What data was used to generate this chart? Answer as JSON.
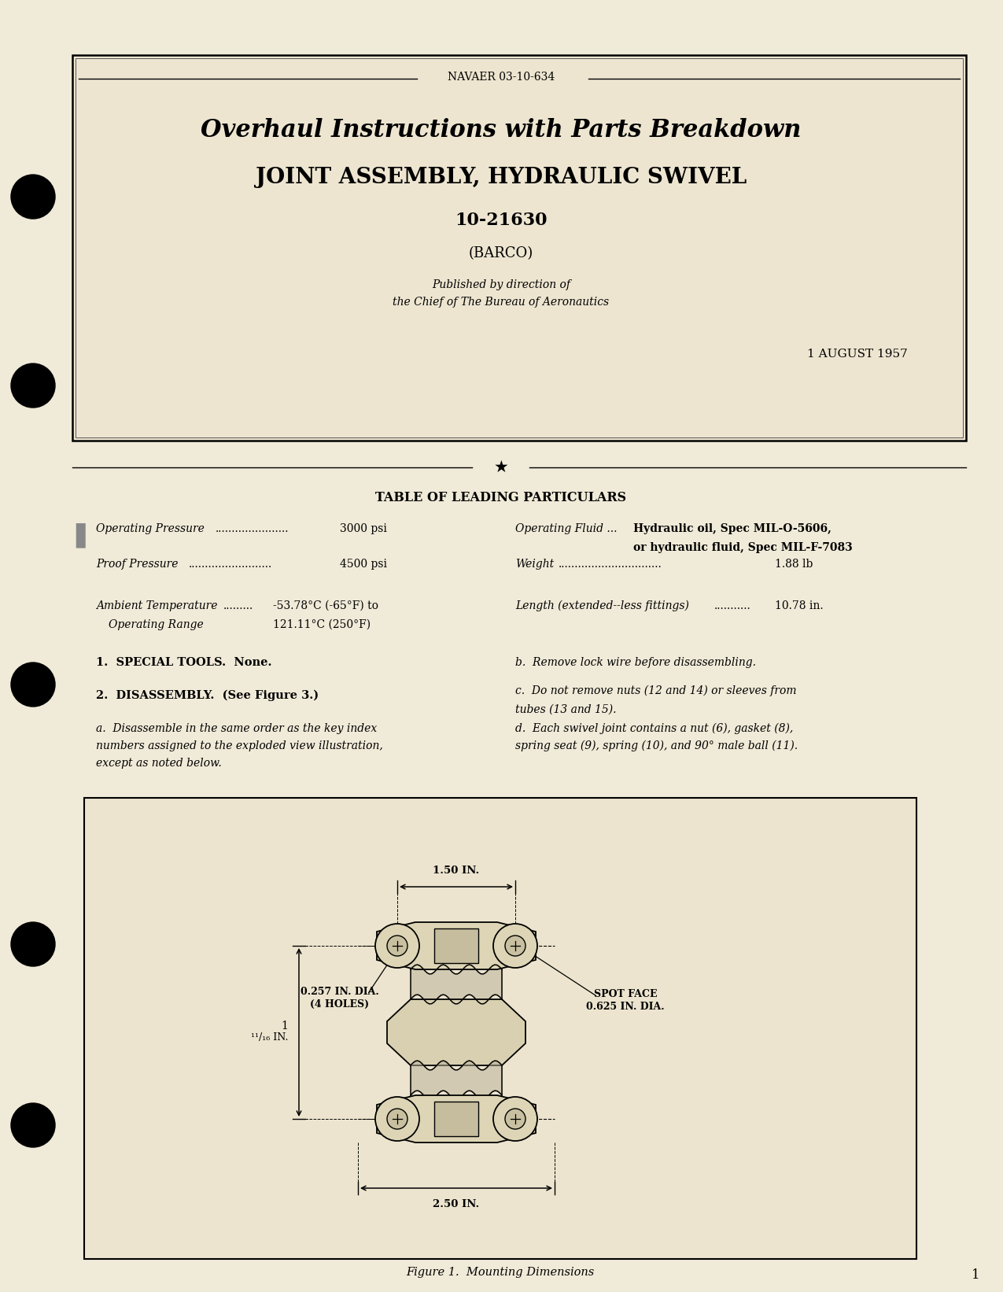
{
  "page_bg": "#f0ead8",
  "inner_bg": "#ede5d0",
  "header_text": "NAVAER 03-10-634",
  "title1": "Overhaul Instructions with Parts Breakdown",
  "title2": "JOINT ASSEMBLY, HYDRAULIC SWIVEL",
  "part_number": "10-21630",
  "company": "(BARCO)",
  "published_line1": "Published by direction of",
  "published_line2": "the Chief of The Bureau of Aeronautics",
  "date": "1 AUGUST 1957",
  "table_title": "TABLE OF LEADING PARTICULARS",
  "op_pressure_label": "Operating Pressure",
  "op_pressure_dots": "......................",
  "op_pressure_val": "3000 psi",
  "proof_label": "Proof Pressure",
  "proof_dots": ".........................",
  "proof_val": "4500 psi",
  "amb_temp_label": "Ambient Temperature",
  "amb_temp_dots": ".........",
  "amb_temp_val": "-53.78°C (-65°F) to",
  "op_range_label": "Operating Range",
  "op_range_val": "121.11°C (250°F)",
  "fluid_label": "Operating Fluid ...",
  "fluid_val1": "Hydraulic oil, Spec MIL-O-5606,",
  "fluid_val2": "or hydraulic fluid, Spec MIL-F-7083",
  "weight_label": "Weight",
  "weight_dots": "...............................",
  "weight_val": "1.88 lb",
  "length_label": "Length (extended--less fittings)",
  "length_dots": "...........",
  "length_val": "10.78 in.",
  "section1": "1.  SPECIAL TOOLS.  None.",
  "section2": "2.  DISASSEMBLY.  (See Figure 3.)",
  "para_a_line1": "a.  Disassemble in the same order as the key index",
  "para_a_line2": "numbers assigned to the exploded view illustration,",
  "para_a_line3": "except as noted below.",
  "para_b": "b.  Remove lock wire before disassembling.",
  "para_c_line1": "c.  Do not remove nuts (12 and 14) or sleeves from",
  "para_c_line2": "tubes (13 and 15).",
  "para_d_line1": "d.  Each swivel joint contains a nut (6), gasket (8),",
  "para_d_line2": "spring seat (9), spring (10), and 90° male ball (11).",
  "fig_caption": "Figure 1.  Mounting Dimensions",
  "dim_150": "1.50 IN.",
  "dim_250": "2.50 IN.",
  "dim_height": "1",
  "dim_height_frac": "11",
  "dim_height_denom": "16",
  "dim_hole_line1": "0.257 IN. DIA.",
  "dim_hole_line2": "(4 HOLES)",
  "dim_spot_line1": "SPOT FACE",
  "dim_spot_line2": "0.625 IN. DIA.",
  "page_num": "1"
}
